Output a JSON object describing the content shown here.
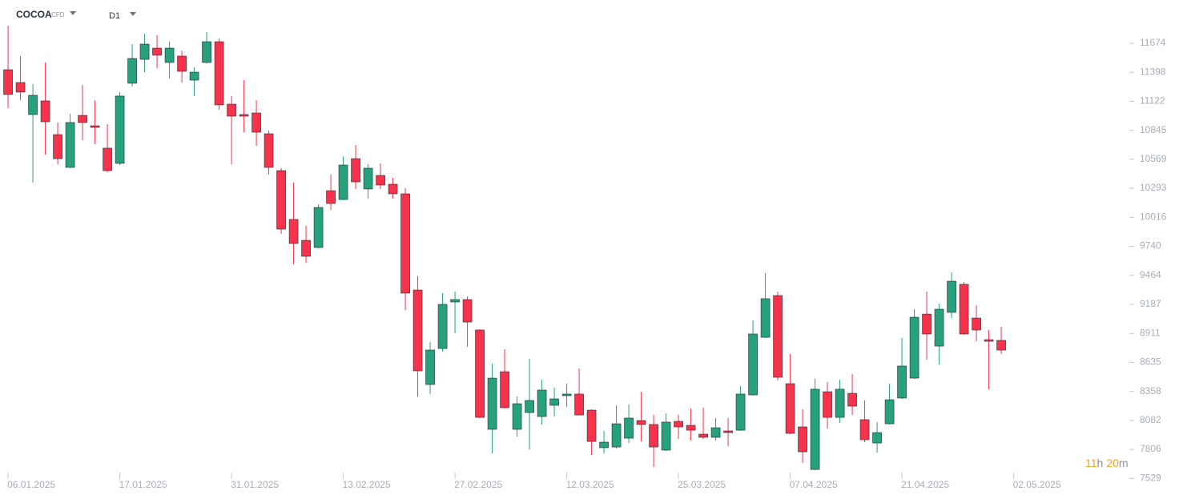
{
  "header": {
    "symbol": "COCOA",
    "instrument_type": "CFD",
    "timeframe": "D1"
  },
  "countdown": {
    "hours": "11",
    "hours_unit": "h",
    "minutes": "20",
    "minutes_unit": "m"
  },
  "chart_data": {
    "type": "candlestick",
    "up_color": "#26a17b",
    "down_color": "#f7334b",
    "ylim": [
      7509,
      12086
    ],
    "yticks": [
      7529,
      7806,
      8082,
      8358,
      8635,
      8911,
      9187,
      9464,
      9740,
      10016,
      10293,
      10569,
      10845,
      11122,
      11398,
      11674
    ],
    "xlim": [
      -0.65,
      89.35
    ],
    "xticks": [
      {
        "value": 0,
        "label": "06.01.2025"
      },
      {
        "value": 9,
        "label": "17.01.2025"
      },
      {
        "value": 18,
        "label": "31.01.2025"
      },
      {
        "value": 27,
        "label": "13.02.2025"
      },
      {
        "value": 36,
        "label": "27.02.2025"
      },
      {
        "value": 45,
        "label": "12.03.2025"
      },
      {
        "value": 54,
        "label": "25.03.2025"
      },
      {
        "value": 63,
        "label": "07.04.2025"
      },
      {
        "value": 72,
        "label": "21.04.2025"
      },
      {
        "value": 81,
        "label": "02.05.2025"
      }
    ],
    "open": [
      11422,
      11300,
      10995,
      11125,
      10804,
      10492,
      10987,
      10888,
      10675,
      10530,
      11293,
      11521,
      11628,
      11491,
      11552,
      11323,
      11491,
      11689,
      11094,
      10995,
      11010,
      10812,
      10461,
      9996,
      9797,
      9729,
      10270,
      10186,
      10575,
      10286,
      10415,
      10331,
      10240,
      9324,
      8424,
      8767,
      9210,
      9233,
      8943,
      7997,
      8546,
      7997,
      8157,
      8119,
      8226,
      8318,
      8333,
      8180,
      7822,
      7829,
      7913,
      8081,
      8043,
      7799,
      8073,
      8035,
      7951,
      7921,
      7982,
      7989,
      8325,
      8874,
      9271,
      8432,
      8020,
      7615,
      8355,
      8111,
      8340,
      8089,
      7867,
      8050,
      8295,
      8485,
      9095,
      8790,
      9111,
      9378,
      9057,
      8851,
      8844
    ],
    "high": [
      11842,
      11552,
      11285,
      11491,
      10919,
      11003,
      11277,
      11132,
      10904,
      11209,
      11666,
      11766,
      11750,
      11689,
      11605,
      11445,
      11781,
      11720,
      11171,
      11323,
      11132,
      10843,
      10484,
      10347,
      9935,
      10141,
      10423,
      10598,
      10705,
      10522,
      10530,
      10392,
      10293,
      9454,
      8828,
      9294,
      9309,
      9263,
      8950,
      8622,
      8760,
      8310,
      8668,
      8470,
      8394,
      8432,
      8577,
      8188,
      7982,
      8226,
      8233,
      8355,
      8134,
      8150,
      8134,
      8195,
      8203,
      8104,
      8104,
      8409,
      9034,
      9485,
      9309,
      8714,
      8188,
      8478,
      8447,
      8470,
      8523,
      8272,
      8066,
      8432,
      8867,
      9141,
      9309,
      9195,
      9492,
      9401,
      9179,
      8943,
      8973
    ],
    "low": [
      11056,
      11132,
      10347,
      10614,
      10522,
      10484,
      10751,
      10713,
      10446,
      10514,
      11262,
      11399,
      11438,
      11338,
      11300,
      11171,
      11480,
      11041,
      10522,
      10827,
      10698,
      10423,
      9858,
      9569,
      9584,
      9721,
      10087,
      10179,
      10286,
      10194,
      10286,
      10194,
      9134,
      8310,
      8333,
      8737,
      8912,
      8783,
      8104,
      7768,
      8195,
      7928,
      7806,
      8043,
      8119,
      8211,
      8130,
      7753,
      7768,
      7814,
      7867,
      7882,
      7638,
      7791,
      7905,
      7890,
      7905,
      7890,
      7837,
      7982,
      8318,
      8867,
      8462,
      7951,
      7677,
      7608,
      8004,
      8058,
      8134,
      7875,
      7776,
      8043,
      8287,
      8478,
      8661,
      8615,
      9057,
      8897,
      8836,
      8378,
      8714
    ],
    "close": [
      11186,
      11209,
      11178,
      10926,
      10575,
      10919,
      10919,
      10873,
      10461,
      11171,
      11529,
      11666,
      11560,
      11628,
      11407,
      11399,
      11689,
      11087,
      10980,
      10980,
      10827,
      10492,
      9904,
      9767,
      9645,
      10110,
      10148,
      10514,
      10354,
      10484,
      10324,
      10240,
      9294,
      8554,
      8752,
      9187,
      9233,
      9019,
      8111,
      8485,
      8203,
      8241,
      8272,
      8371,
      8287,
      8333,
      8134,
      7882,
      7875,
      8050,
      8104,
      8043,
      7829,
      8066,
      8020,
      7989,
      7921,
      8012,
      7966,
      8333,
      8905,
      9241,
      8493,
      7959,
      7783,
      8379,
      8111,
      8379,
      8218,
      7898,
      7966,
      8279,
      8600,
      9065,
      8905,
      9141,
      9408,
      8905,
      8943,
      8836,
      8752
    ]
  }
}
